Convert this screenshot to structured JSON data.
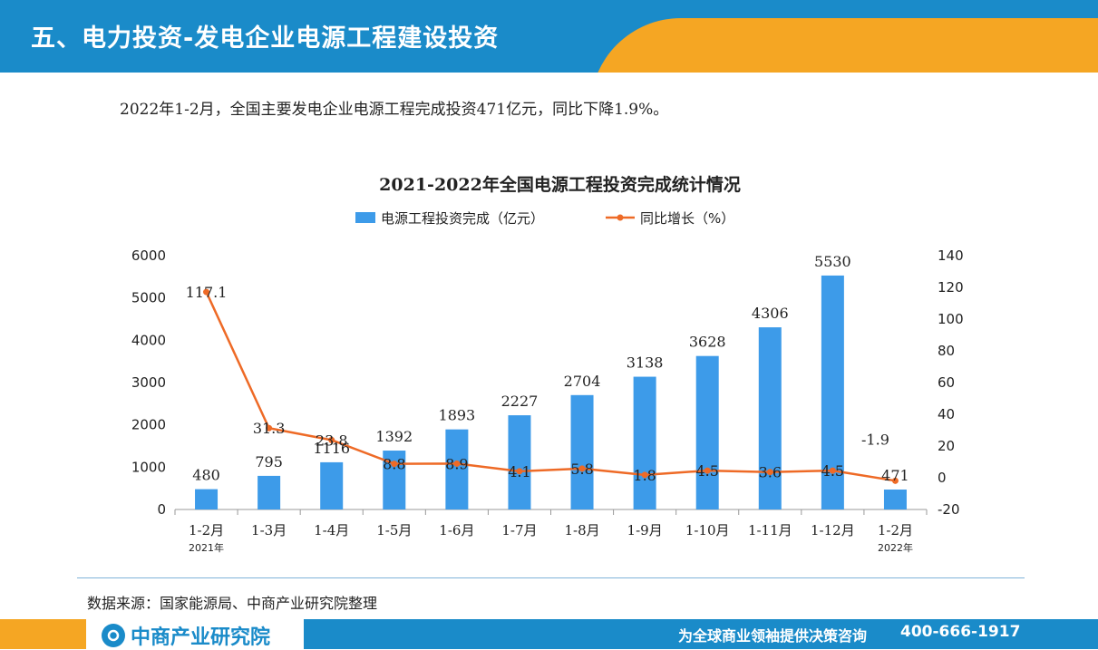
{
  "header": {
    "title": "五、电力投资-发电企业电源工程建设投资"
  },
  "summary": "2022年1-2月，全国主要发电企业电源工程完成投资471亿元，同比下降1.9%。",
  "source": "数据来源：国家能源局、中商产业研究院整理",
  "footer": {
    "logo_text": "中商产业研究院",
    "slogan": "为全球商业领袖提供决策咨询",
    "phone": "400-666-1917"
  },
  "colors": {
    "bar": "#3d9be9",
    "line": "#ee6a26",
    "header": "#1a8bc9",
    "accent": "#f5a623"
  },
  "chart_data": {
    "type": "bar",
    "title": "2021-2022年全国电源工程投资完成统计情况",
    "categories": [
      "1-2月",
      "1-3月",
      "1-4月",
      "1-5月",
      "1-6月",
      "1-7月",
      "1-8月",
      "1-9月",
      "1-10月",
      "1-11月",
      "1-12月",
      "1-2月"
    ],
    "category_sublabels": [
      "2021年",
      "",
      "",
      "",
      "",
      "",
      "",
      "",
      "",
      "",
      "",
      "2022年"
    ],
    "series": [
      {
        "name": "电源工程投资完成（亿元）",
        "type": "bar",
        "axis": "left",
        "values": [
          480,
          795,
          1116,
          1392,
          1893,
          2227,
          2704,
          3138,
          3628,
          4306,
          5530,
          471
        ]
      },
      {
        "name": "同比增长（%）",
        "type": "line",
        "axis": "right",
        "values": [
          117.1,
          31.3,
          23.8,
          8.8,
          8.9,
          4.1,
          5.8,
          1.8,
          4.5,
          3.6,
          4.5,
          -1.9
        ]
      }
    ],
    "y_left": {
      "min": 0,
      "max": 6000,
      "ticks": [
        0,
        1000,
        2000,
        3000,
        4000,
        5000,
        6000
      ]
    },
    "y_right": {
      "min": -20,
      "max": 140,
      "ticks": [
        -20,
        0,
        20,
        40,
        60,
        80,
        100,
        120,
        140
      ]
    },
    "legend": "top-center",
    "grid": false
  }
}
